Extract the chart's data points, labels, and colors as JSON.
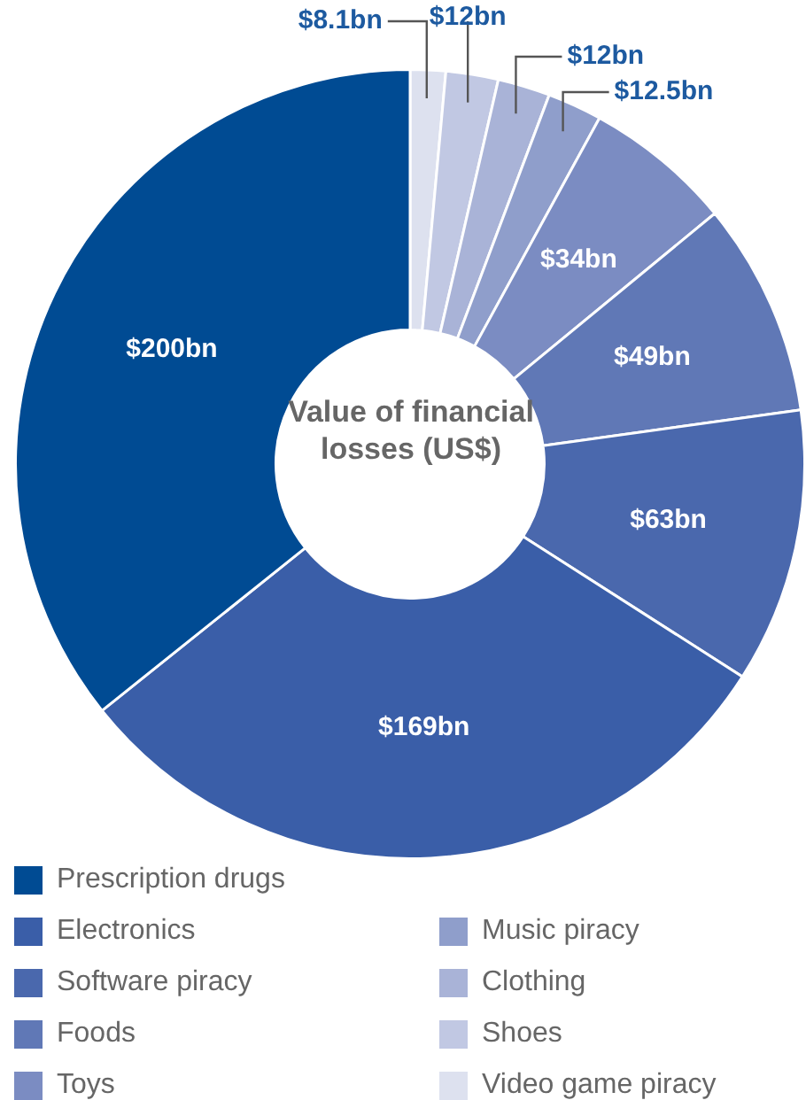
{
  "chart_data": {
    "type": "donut",
    "title": "Value of financial losses (US$)",
    "categories": [
      "Prescription drugs",
      "Electronics",
      "Software piracy",
      "Foods",
      "Toys",
      "Music piracy",
      "Clothing",
      "Shoes",
      "Video game piracy"
    ],
    "values": [
      200,
      169,
      63,
      49,
      34,
      12.5,
      12,
      12,
      8.1
    ],
    "colors": [
      "#004b93",
      "#3a5ea8",
      "#4a68ad",
      "#6078b6",
      "#7b8cc2",
      "#8f9ecb",
      "#a9b3d7",
      "#c1c8e3",
      "#dde1ef"
    ],
    "value_labels": [
      "$200bn",
      "$169bn",
      "$63bn",
      "$49bn",
      "$34bn",
      "$12.5bn",
      "$12bn",
      "$12bn",
      "$8.1bn"
    ],
    "legend": "bottom"
  }
}
